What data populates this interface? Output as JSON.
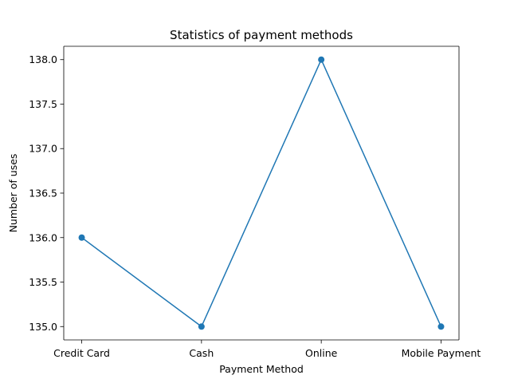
{
  "chart_data": {
    "type": "line",
    "title": "Statistics of payment methods",
    "xlabel": "Payment Method",
    "ylabel": "Number of uses",
    "categories": [
      "Credit Card",
      "Cash",
      "Online",
      "Mobile Payment"
    ],
    "series": [
      {
        "values": [
          136,
          135,
          138,
          135
        ],
        "color": "#1f77b4",
        "marker": "circle"
      }
    ],
    "ylim": [
      134.85,
      138.15
    ],
    "yticks": [
      135.0,
      135.5,
      136.0,
      136.5,
      137.0,
      137.5,
      138.0
    ],
    "ytick_labels": [
      "135.0",
      "135.5",
      "136.0",
      "136.5",
      "137.0",
      "137.5",
      "138.0"
    ],
    "grid": false,
    "legend": "none"
  }
}
